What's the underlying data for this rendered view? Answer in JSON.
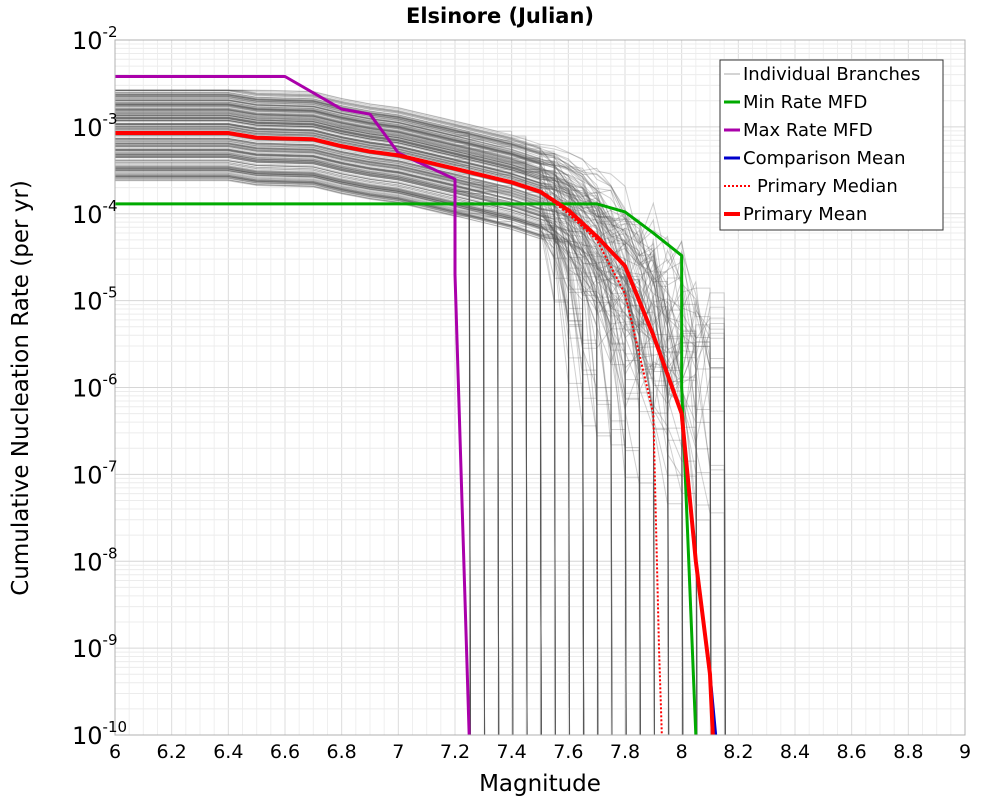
{
  "chart_data": {
    "type": "line",
    "title": "Elsinore (Julian)",
    "xlabel": "Magnitude",
    "ylabel": "Cumulative Nucleation Rate (per yr)",
    "xlim": [
      6,
      9
    ],
    "ylim": [
      1e-10,
      0.01
    ],
    "y_scale": "log",
    "grid": true,
    "legend_position": "top-right",
    "x_ticks": [
      "6",
      "6.2",
      "6.4",
      "6.6",
      "6.8",
      "7",
      "7.2",
      "7.4",
      "7.6",
      "7.8",
      "8",
      "8.2",
      "8.4",
      "8.6",
      "8.8",
      "9"
    ],
    "y_ticks": [
      {
        "base": "10",
        "exp": "-2"
      },
      {
        "base": "10",
        "exp": "-3"
      },
      {
        "base": "10",
        "exp": "-4"
      },
      {
        "base": "10",
        "exp": "-5"
      },
      {
        "base": "10",
        "exp": "-6"
      },
      {
        "base": "10",
        "exp": "-7"
      },
      {
        "base": "10",
        "exp": "-8"
      },
      {
        "base": "10",
        "exp": "-9"
      },
      {
        "base": "10",
        "exp": "-10"
      }
    ],
    "series": [
      {
        "name": "Individual Branches",
        "color": "#555555",
        "style": "thin-band",
        "note_range": {
          "plateau_low": 0.00018,
          "plateau_high": 0.0022,
          "cutoff_mags": [
            7.25,
            7.3,
            7.35,
            7.4,
            7.45,
            7.5,
            7.55,
            7.6,
            7.65,
            7.7,
            7.75,
            7.8,
            7.85,
            7.9,
            7.95,
            8.0,
            8.05,
            8.1,
            8.15
          ]
        }
      },
      {
        "name": "Min Rate MFD",
        "color": "#00aa00",
        "style": "solid",
        "points": [
          [
            6.0,
            0.00013
          ],
          [
            7.7,
            0.00013
          ],
          [
            7.8,
            0.000105
          ],
          [
            7.9,
            6e-05
          ],
          [
            8.0,
            3.3e-05
          ],
          [
            8.0,
            1e-06
          ],
          [
            8.05,
            1e-10
          ]
        ]
      },
      {
        "name": "Max Rate MFD",
        "color": "#aa00aa",
        "style": "solid",
        "points": [
          [
            6.0,
            0.0038
          ],
          [
            6.6,
            0.0038
          ],
          [
            6.8,
            0.0016
          ],
          [
            6.9,
            0.0014
          ],
          [
            7.0,
            0.0005
          ],
          [
            7.2,
            0.00025
          ],
          [
            7.2,
            2e-05
          ],
          [
            7.25,
            1e-10
          ]
        ]
      },
      {
        "name": "Comparison Mean",
        "color": "#0000cc",
        "style": "solid",
        "points": [
          [
            6.0,
            0.00085
          ],
          [
            6.4,
            0.00085
          ],
          [
            6.5,
            0.00075
          ],
          [
            6.7,
            0.00072
          ],
          [
            6.8,
            0.0006
          ],
          [
            6.9,
            0.00052
          ],
          [
            7.0,
            0.00047
          ],
          [
            7.2,
            0.00033
          ],
          [
            7.4,
            0.00023
          ],
          [
            7.5,
            0.00018
          ],
          [
            7.6,
            0.00011
          ],
          [
            7.7,
            5.5e-05
          ],
          [
            7.8,
            2.5e-05
          ],
          [
            7.9,
            4e-06
          ],
          [
            8.0,
            5e-07
          ],
          [
            8.05,
            1e-08
          ],
          [
            8.1,
            5e-10
          ],
          [
            8.12,
            1e-10
          ]
        ]
      },
      {
        "name": "Primary Median",
        "color": "#ff0000",
        "style": "dotted",
        "points": [
          [
            6.0,
            0.00085
          ],
          [
            6.4,
            0.00085
          ],
          [
            6.5,
            0.00075
          ],
          [
            6.7,
            0.00072
          ],
          [
            6.8,
            0.0006
          ],
          [
            6.9,
            0.00052
          ],
          [
            7.0,
            0.00047
          ],
          [
            7.2,
            0.00033
          ],
          [
            7.4,
            0.00023
          ],
          [
            7.5,
            0.00018
          ],
          [
            7.6,
            0.0001
          ],
          [
            7.7,
            5e-05
          ],
          [
            7.8,
            1.2e-05
          ],
          [
            7.9,
            5e-07
          ],
          [
            7.92,
            1e-09
          ],
          [
            7.93,
            1e-10
          ]
        ]
      },
      {
        "name": "Primary Mean",
        "color": "#ff0000",
        "style": "thick",
        "points": [
          [
            6.0,
            0.00085
          ],
          [
            6.4,
            0.00085
          ],
          [
            6.5,
            0.00075
          ],
          [
            6.7,
            0.00072
          ],
          [
            6.8,
            0.0006
          ],
          [
            6.9,
            0.00052
          ],
          [
            7.0,
            0.00047
          ],
          [
            7.2,
            0.00033
          ],
          [
            7.4,
            0.00023
          ],
          [
            7.5,
            0.00018
          ],
          [
            7.6,
            0.00011
          ],
          [
            7.7,
            5.5e-05
          ],
          [
            7.8,
            2.5e-05
          ],
          [
            7.9,
            4e-06
          ],
          [
            8.0,
            5e-07
          ],
          [
            8.05,
            1e-08
          ],
          [
            8.1,
            5e-10
          ],
          [
            8.11,
            1e-10
          ]
        ]
      }
    ]
  }
}
